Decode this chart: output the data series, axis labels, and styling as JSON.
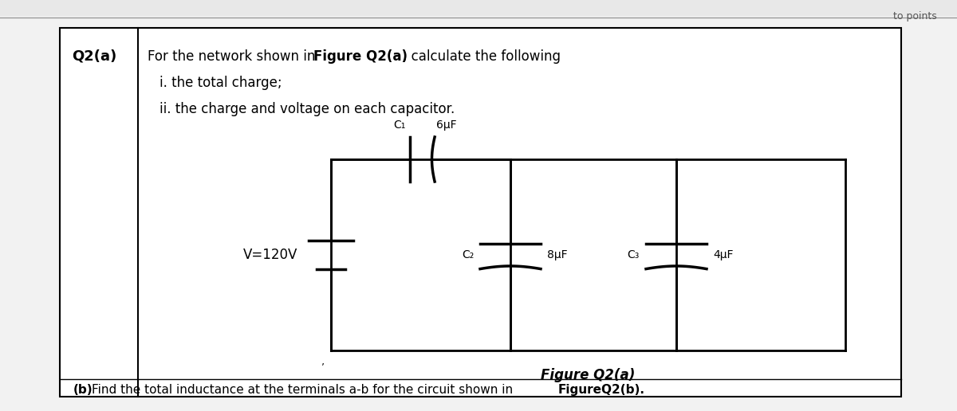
{
  "bg_color": "#f0f0f0",
  "box_bg": "#ffffff",
  "line_color": "#000000",
  "text_color": "#000000",
  "title_q": "Q2(a)",
  "C1_label": "C₁",
  "C1_val": "6μF",
  "C2_label": "C₂",
  "C2_val": "8μF",
  "C3_label": "C₃",
  "C3_val": "4μF",
  "V_label": "V=120V",
  "fig_label": "Figure Q2(a)",
  "item_i": "i. the total charge;",
  "item_ii": "ii. the charge and voltage on each capacitor.",
  "footer_b": "(b)",
  "footer_text": "Find the total inductance at the terminals a-b for the circuit shown in ",
  "footer_bold": "FigureQ2(b).",
  "header_text": "to points"
}
